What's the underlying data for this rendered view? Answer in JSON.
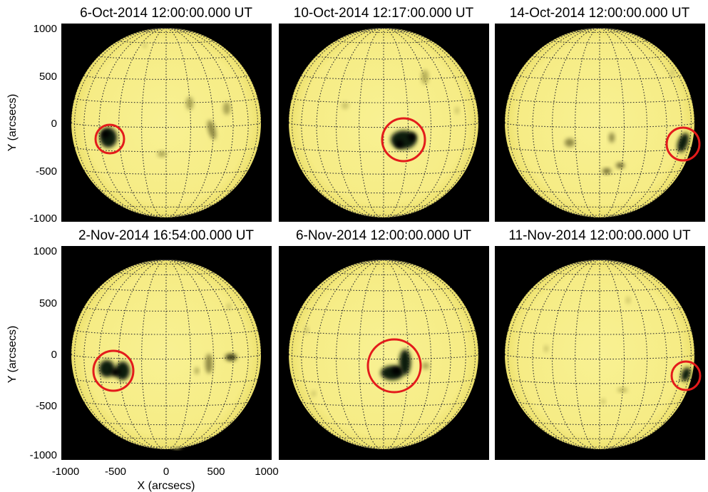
{
  "figure": {
    "panels": [
      {
        "title": "6-Oct-2014 12:00:00.000 UT"
      },
      {
        "title": "10-Oct-2014 12:17:00.000 UT"
      },
      {
        "title": "14-Oct-2014 12:00:00.000 UT"
      },
      {
        "title": "2-Nov-2014 16:54:00.000 UT"
      },
      {
        "title": "6-Nov-2014 12:00:00.000 UT"
      },
      {
        "title": "11-Nov-2014 12:00:00.000 UT"
      }
    ],
    "y_axis": {
      "label": "Y (arcsecs)",
      "ticks": [
        "1000",
        "500",
        "0",
        "-500",
        "-1000"
      ]
    },
    "x_axis": {
      "label": "X (arcsecs)",
      "ticks": [
        "-1000",
        "-500",
        "0",
        "500",
        "1000"
      ]
    },
    "colors": {
      "disk": "#f7ef8e",
      "background": "#000000",
      "grid": "#333333",
      "highlight_circle": "#e31b1b",
      "active_region": "#111a08"
    }
  }
}
